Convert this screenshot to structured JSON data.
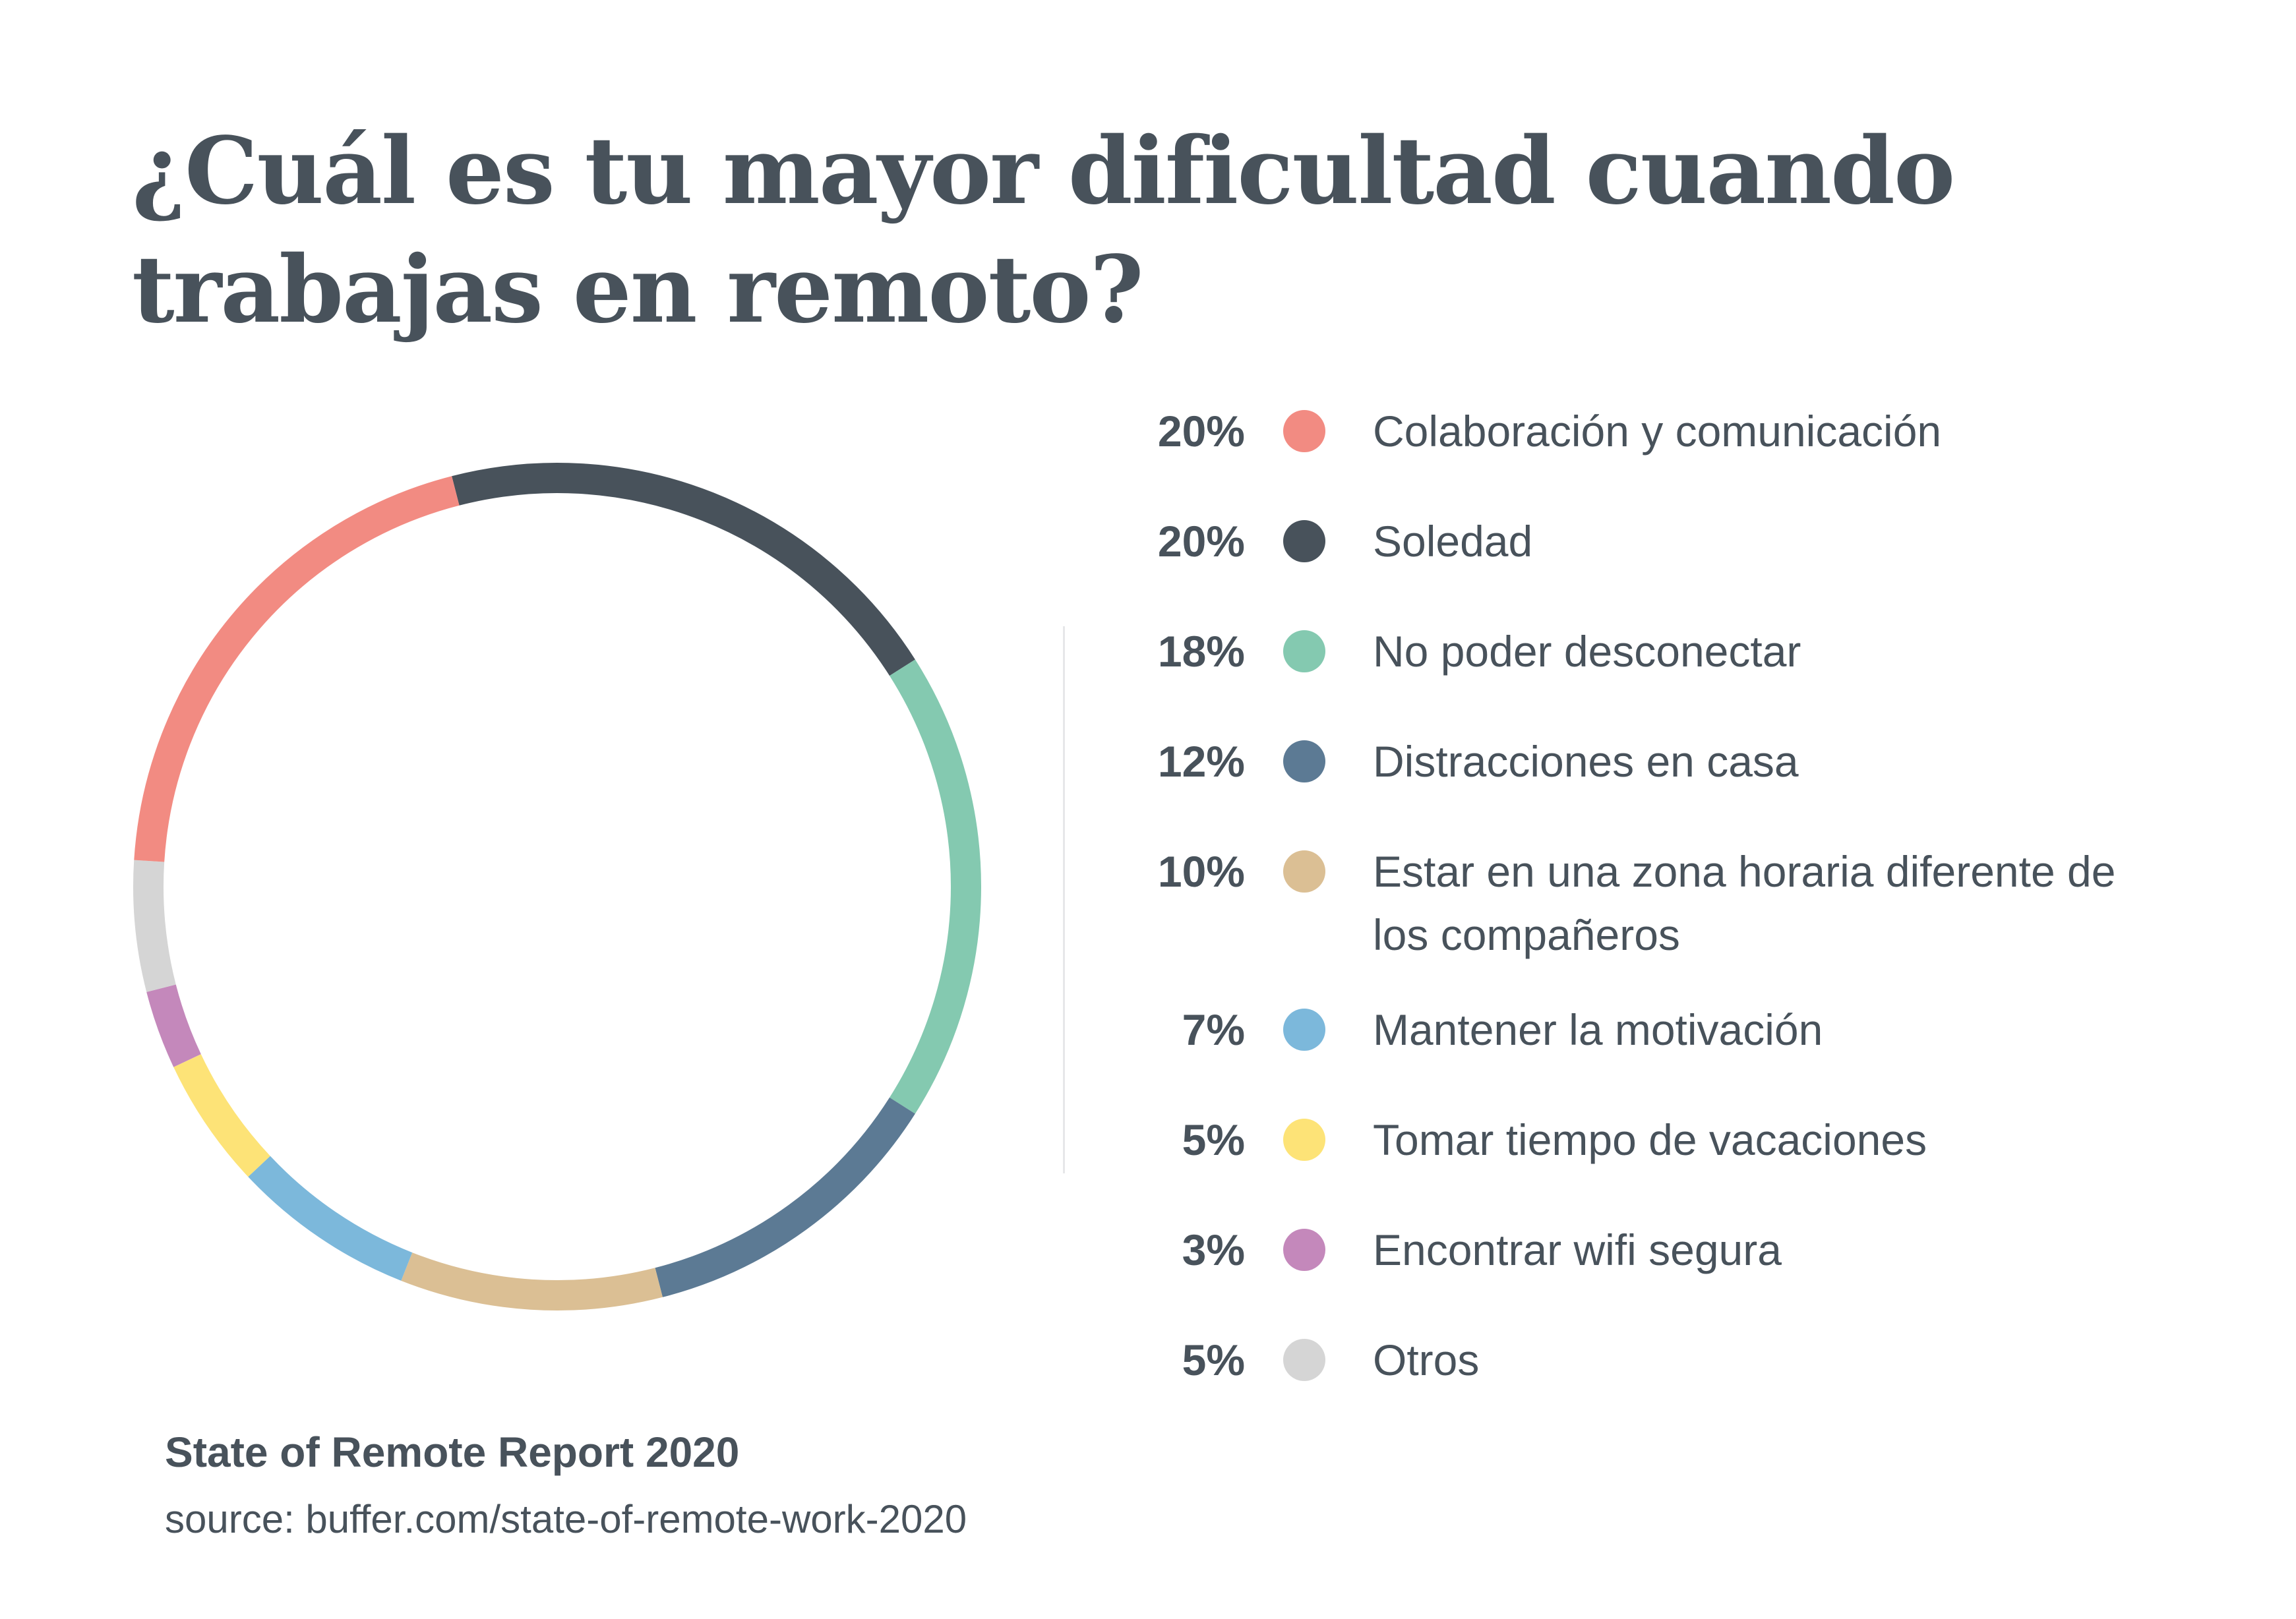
{
  "chart_data": {
    "type": "pie",
    "title": "¿Cuál es tu mayor dificultad cuando trabajas en remoto?",
    "series": [
      {
        "name": "Colaboración y comunicación",
        "value": 20,
        "label": "20%",
        "color": "#f28b82"
      },
      {
        "name": "Soledad",
        "value": 20,
        "label": "20%",
        "color": "#48525b"
      },
      {
        "name": "No poder desconectar",
        "value": 18,
        "label": "18%",
        "color": "#84c9b0"
      },
      {
        "name": "Distracciones en casa",
        "value": 12,
        "label": "12%",
        "color": "#5c7a94"
      },
      {
        "name": "Estar en una zona horaria diferente de los compañeros",
        "value": 10,
        "label": "10%",
        "color": "#dbbf94"
      },
      {
        "name": "Mantener la motivación",
        "value": 7,
        "label": "7%",
        "color": "#7cb8db"
      },
      {
        "name": "Tomar tiempo de vacaciones",
        "value": 5,
        "label": "5%",
        "color": "#fde377"
      },
      {
        "name": "Encontrar wifi segura",
        "value": 3,
        "label": "3%",
        "color": "#c488bb"
      },
      {
        "name": "Otros",
        "value": 5,
        "label": "5%",
        "color": "#d5d5d5"
      }
    ],
    "legend_position": "right"
  },
  "footer": {
    "report": "State of Remote Report 2020",
    "source": "source: buffer.com/state-of-remote-work-2020"
  }
}
